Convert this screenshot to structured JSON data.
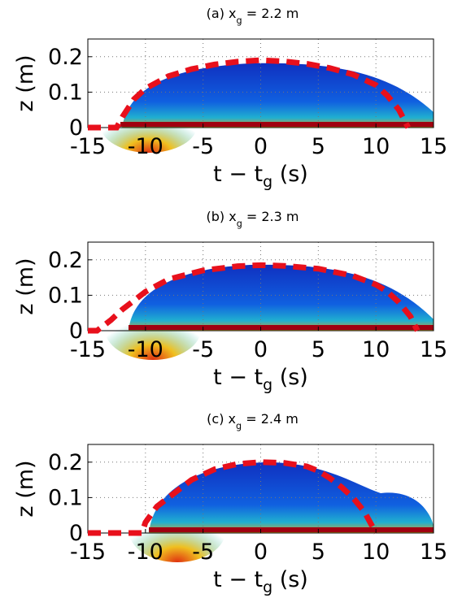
{
  "chart_data": [
    {
      "type": "line",
      "title": {
        "prefix": "(a)  x",
        "sub": "g",
        "suffix": " = 2.2 m"
      },
      "xlabel": {
        "prefix": "t −  t",
        "sub": "g",
        "suffix": "  (s)"
      },
      "ylabel": "z (m)",
      "xlim": [
        -15,
        15
      ],
      "ylim": [
        0,
        0.25
      ],
      "xticks": [
        -15,
        -10,
        -5,
        0,
        5,
        10,
        15
      ],
      "yticks": [
        0,
        0.1,
        0.2
      ],
      "grid": true,
      "x": [
        -15,
        -12.5,
        -12,
        -11,
        -10,
        -8,
        -6,
        -4,
        -2,
        0,
        2,
        4,
        6,
        8,
        10,
        11,
        12,
        12.8
      ],
      "series": [
        {
          "color": "#e8101c",
          "values": [
            0,
            0,
            0.03,
            0.08,
            0.11,
            0.145,
            0.165,
            0.178,
            0.186,
            0.19,
            0.187,
            0.18,
            0.168,
            0.15,
            0.12,
            0.09,
            0.05,
            0
          ]
        }
      ]
    },
    {
      "type": "line",
      "title": {
        "prefix": "(b)  x",
        "sub": "g",
        "suffix": " = 2.3 m"
      },
      "xlabel": {
        "prefix": "t −  t",
        "sub": "g",
        "suffix": "  (s)"
      },
      "ylabel": "z (m)",
      "xlim": [
        -15,
        15
      ],
      "ylim": [
        0,
        0.25
      ],
      "xticks": [
        -15,
        -10,
        -5,
        0,
        5,
        10,
        15
      ],
      "yticks": [
        0,
        0.1,
        0.2
      ],
      "grid": true,
      "x": [
        -15,
        -14.2,
        -13,
        -12,
        -10,
        -8,
        -5,
        -2,
        0,
        2,
        5,
        8,
        10,
        11,
        12,
        13,
        13.6
      ],
      "series": [
        {
          "color": "#e8101c",
          "values": [
            0,
            0,
            0.03,
            0.06,
            0.11,
            0.145,
            0.17,
            0.182,
            0.185,
            0.183,
            0.175,
            0.155,
            0.13,
            0.11,
            0.08,
            0.04,
            0
          ]
        }
      ]
    },
    {
      "type": "line",
      "title": {
        "prefix": "(c)  x",
        "sub": "g",
        "suffix": " = 2.4 m"
      },
      "xlabel": {
        "prefix": "t −  t",
        "sub": "g",
        "suffix": "  (s)"
      },
      "ylabel": "z (m)",
      "xlim": [
        -15,
        15
      ],
      "ylim": [
        0,
        0.25
      ],
      "xticks": [
        -15,
        -10,
        -5,
        0,
        5,
        10,
        15
      ],
      "yticks": [
        0,
        0.1,
        0.2
      ],
      "grid": true,
      "x": [
        -15,
        -10.3,
        -10,
        -9,
        -8,
        -6,
        -4,
        -2,
        0,
        2,
        4,
        5,
        6,
        7,
        8,
        9,
        9.5,
        10
      ],
      "series": [
        {
          "color": "#e8101c",
          "values": [
            0,
            0,
            0.03,
            0.075,
            0.1,
            0.15,
            0.18,
            0.195,
            0.2,
            0.198,
            0.188,
            0.175,
            0.155,
            0.13,
            0.1,
            0.06,
            0.03,
            0
          ]
        }
      ]
    }
  ]
}
